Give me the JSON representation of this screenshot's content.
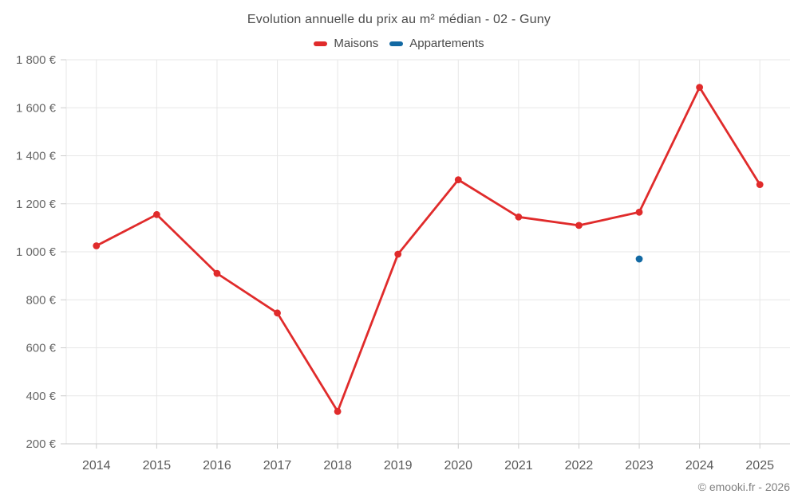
{
  "title": "Evolution annuelle du prix au m² médian - 02 - Guny",
  "footer": {
    "credit": "© emooki.fr - 2026"
  },
  "colors": {
    "maisons": "#e02b2b",
    "appartements": "#1269a3",
    "grid": "#e7e7e7",
    "axis": "#c9c9c9",
    "tick": "#cccccc",
    "axis_label": "#666666",
    "title_text": "#4c4c4c"
  },
  "chart_data": {
    "type": "line",
    "title": "Evolution annuelle du prix au m² médian - 02 - Guny",
    "xlabel": "",
    "ylabel": "",
    "categories": [
      "2014",
      "2015",
      "2016",
      "2017",
      "2018",
      "2019",
      "2020",
      "2021",
      "2022",
      "2023",
      "2024",
      "2025"
    ],
    "ylim": [
      200,
      1800
    ],
    "y_tick_values": [
      200,
      400,
      600,
      800,
      1000,
      1200,
      1400,
      1600,
      1800
    ],
    "y_tick_labels": [
      "200 €",
      "400 €",
      "600 €",
      "800 €",
      "1 000 €",
      "1 200 €",
      "1 400 €",
      "1 600 €",
      "1 800 €"
    ],
    "grid": true,
    "legend_position": "top",
    "series": [
      {
        "name": "Maisons",
        "color": "#e02b2b",
        "values": [
          1025,
          1155,
          910,
          745,
          335,
          990,
          1300,
          1145,
          1110,
          1165,
          1685,
          1280
        ]
      },
      {
        "name": "Appartements",
        "color": "#1269a3",
        "values": [
          null,
          null,
          null,
          null,
          null,
          null,
          null,
          null,
          null,
          970,
          null,
          null
        ]
      }
    ]
  }
}
